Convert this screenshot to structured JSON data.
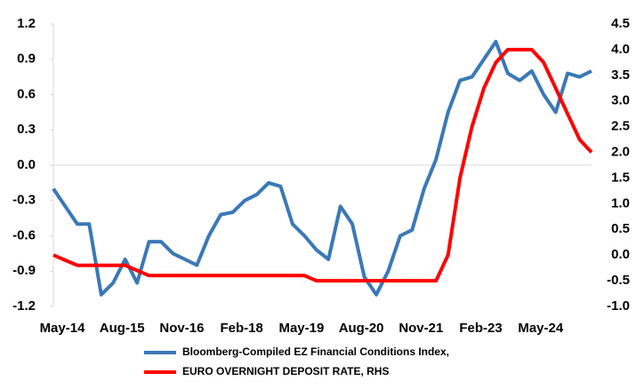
{
  "chart_data": {
    "type": "line",
    "categories": [
      "May-14",
      null,
      null,
      null,
      null,
      "Aug-15",
      null,
      null,
      null,
      null,
      "Nov-16",
      null,
      null,
      null,
      null,
      "Feb-18",
      null,
      null,
      null,
      null,
      "May-19",
      null,
      null,
      null,
      null,
      "Aug-20",
      null,
      null,
      null,
      null,
      "Nov-21",
      null,
      null,
      null,
      null,
      "Feb-23",
      null,
      null,
      null,
      null,
      "May-24",
      null,
      null,
      null,
      null,
      null
    ],
    "series": [
      {
        "name": "Bloomberg-Compiled EZ Financial Conditions Index,",
        "color": "#3a78b8",
        "axis": "y",
        "values": [
          -0.2,
          -0.35,
          -0.5,
          -0.5,
          -1.1,
          -1.0,
          -0.8,
          -1.0,
          -0.65,
          -0.65,
          -0.75,
          -0.8,
          -0.85,
          -0.6,
          -0.42,
          -0.4,
          -0.3,
          -0.25,
          -0.15,
          -0.18,
          -0.5,
          -0.6,
          -0.72,
          -0.8,
          -0.35,
          -0.5,
          -0.95,
          -1.1,
          -0.9,
          -0.6,
          -0.55,
          -0.2,
          0.05,
          0.45,
          0.72,
          0.75,
          0.9,
          1.05,
          0.78,
          0.72,
          0.8,
          0.6,
          0.45,
          0.78,
          0.75,
          0.8
        ]
      },
      {
        "name": "EURO OVERNIGHT DEPOSIT RATE, RHS",
        "color": "#ff0000",
        "axis": "y2",
        "values": [
          0.0,
          -0.1,
          -0.2,
          -0.2,
          -0.2,
          -0.2,
          -0.2,
          -0.3,
          -0.4,
          -0.4,
          -0.4,
          -0.4,
          -0.4,
          -0.4,
          -0.4,
          -0.4,
          -0.4,
          -0.4,
          -0.4,
          -0.4,
          -0.4,
          -0.4,
          -0.5,
          -0.5,
          -0.5,
          -0.5,
          -0.5,
          -0.5,
          -0.5,
          -0.5,
          -0.5,
          -0.5,
          -0.5,
          0.0,
          1.5,
          2.5,
          3.25,
          3.75,
          4.0,
          4.0,
          4.0,
          3.75,
          3.25,
          2.75,
          2.25,
          2.0
        ]
      }
    ],
    "ylim": [
      -1.2,
      1.2
    ],
    "yticks": [
      1.2,
      0.9,
      0.6,
      0.3,
      {
        "value": 0,
        "label": "0.0"
      },
      -0.3,
      -0.6,
      -0.9,
      -1.2
    ],
    "y2lim": [
      -1,
      4.5
    ],
    "y2ticks": [
      4.5,
      {
        "value": 4,
        "label": "4.0"
      },
      3.5,
      {
        "value": 3,
        "label": "3.0"
      },
      2.5,
      {
        "value": 2,
        "label": "2.0"
      },
      1.5,
      {
        "value": 1,
        "label": "1.0"
      },
      0.5,
      {
        "value": 0,
        "label": "0.0"
      },
      -0.5,
      {
        "value": -1,
        "label": "-1.0"
      }
    ],
    "grid": false
  }
}
